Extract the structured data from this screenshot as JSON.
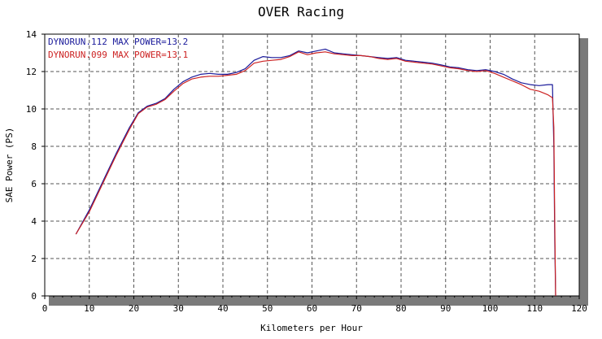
{
  "chart_data": {
    "type": "line",
    "title": "OVER Racing",
    "xlabel": "Kilometers per Hour",
    "ylabel": "SAE Power (PS)",
    "xlim": [
      0,
      120
    ],
    "ylim": [
      0,
      14
    ],
    "xticks": [
      "0",
      "10",
      "20",
      "30",
      "40",
      "50",
      "60",
      "70",
      "80",
      "90",
      "100",
      "110",
      "120"
    ],
    "yticks": [
      "0",
      "2",
      "4",
      "6",
      "8",
      "10",
      "12",
      "14"
    ],
    "grid": true,
    "legend_position": "top-left",
    "series": [
      {
        "name": "DYNORUN.112  MAX POWER=13.2",
        "color": "#1a1a9a",
        "x": [
          7,
          10,
          13,
          16,
          19,
          21,
          23,
          25,
          27,
          29,
          31,
          33,
          35,
          37,
          39,
          41,
          43,
          45,
          47,
          49,
          51,
          53,
          55,
          57,
          59,
          61,
          63,
          65,
          67,
          69,
          71,
          73,
          75,
          77,
          79,
          81,
          83,
          85,
          87,
          89,
          91,
          93,
          95,
          97,
          99,
          101,
          103,
          105,
          107,
          109,
          111,
          113,
          114,
          114.3,
          114.5,
          114.7
        ],
        "values": [
          3.3,
          4.6,
          6.1,
          7.6,
          9.0,
          9.8,
          10.15,
          10.3,
          10.55,
          11.05,
          11.45,
          11.7,
          11.85,
          11.9,
          11.85,
          11.85,
          11.95,
          12.15,
          12.6,
          12.8,
          12.75,
          12.75,
          12.85,
          13.1,
          13.0,
          13.1,
          13.2,
          13.0,
          12.95,
          12.9,
          12.85,
          12.8,
          12.75,
          12.7,
          12.75,
          12.6,
          12.55,
          12.5,
          12.45,
          12.35,
          12.25,
          12.2,
          12.1,
          12.05,
          12.1,
          12.0,
          11.85,
          11.6,
          11.4,
          11.3,
          11.25,
          11.3,
          11.3,
          8.0,
          3.0,
          0.0
        ]
      },
      {
        "name": "DYNORUN.099  MAX POWER=13.1",
        "color": "#cc2222",
        "x": [
          7,
          10,
          13,
          16,
          19,
          21,
          23,
          25,
          27,
          29,
          31,
          33,
          35,
          37,
          39,
          41,
          43,
          45,
          47,
          49,
          51,
          53,
          55,
          57,
          59,
          61,
          63,
          65,
          67,
          69,
          71,
          73,
          75,
          77,
          79,
          81,
          83,
          85,
          87,
          89,
          91,
          93,
          95,
          97,
          99,
          101,
          103,
          105,
          107,
          109,
          111,
          113,
          114,
          114.3,
          114.5,
          114.7
        ],
        "values": [
          3.3,
          4.5,
          6.0,
          7.5,
          8.9,
          9.75,
          10.1,
          10.25,
          10.5,
          10.95,
          11.35,
          11.6,
          11.7,
          11.75,
          11.75,
          11.8,
          11.85,
          12.05,
          12.45,
          12.55,
          12.6,
          12.65,
          12.8,
          13.05,
          12.9,
          13.0,
          13.05,
          12.95,
          12.9,
          12.85,
          12.85,
          12.8,
          12.7,
          12.65,
          12.7,
          12.55,
          12.5,
          12.45,
          12.4,
          12.3,
          12.2,
          12.15,
          12.05,
          12.0,
          12.05,
          11.9,
          11.7,
          11.5,
          11.3,
          11.05,
          10.95,
          10.75,
          10.6,
          9.0,
          4.0,
          0.0
        ]
      }
    ]
  }
}
